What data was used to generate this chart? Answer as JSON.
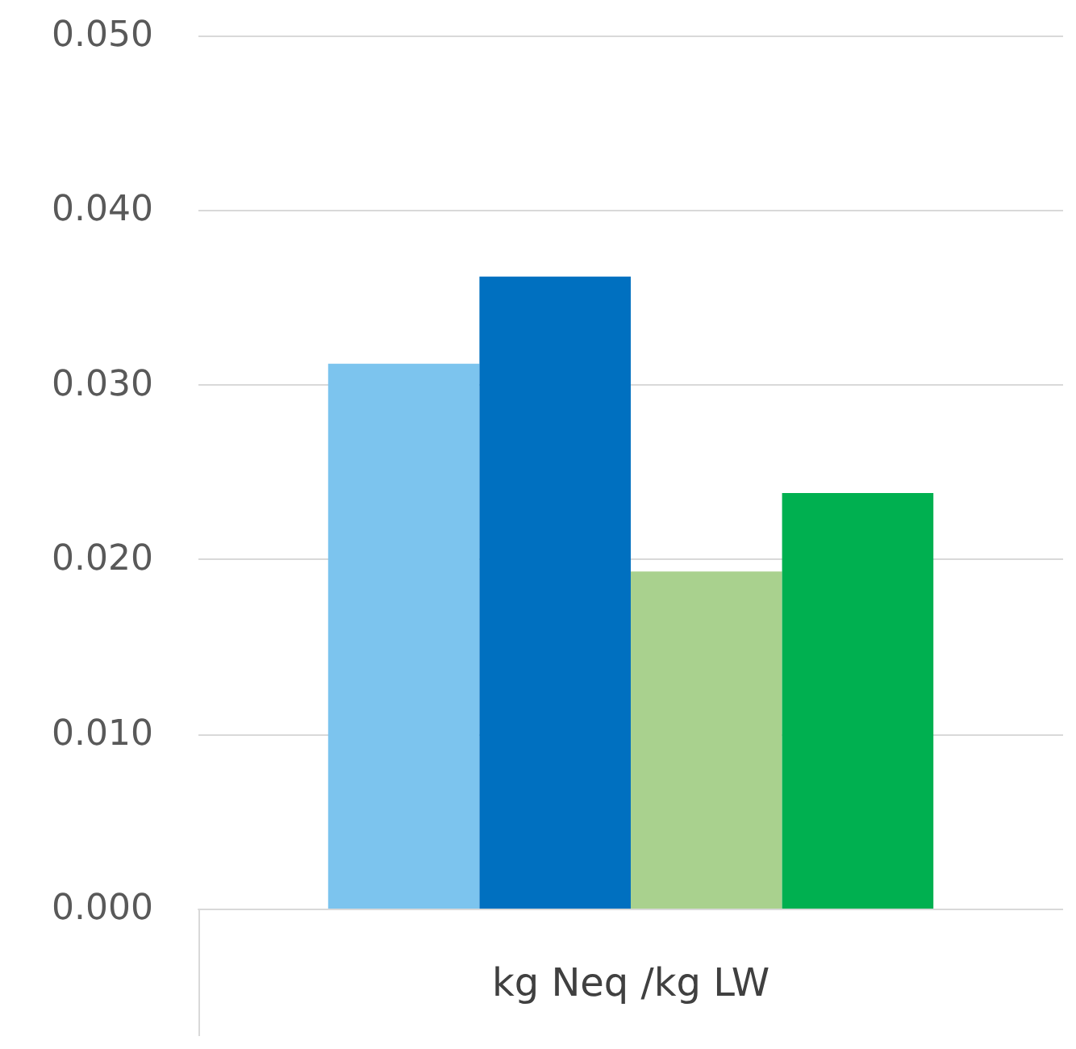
{
  "chart_data": {
    "type": "bar",
    "categories": [
      "kg Neq /kg LW"
    ],
    "series": [
      {
        "color": "#7cc4ee",
        "values": [
          0.0312
        ]
      },
      {
        "color": "#0070c0",
        "values": [
          0.0362
        ]
      },
      {
        "color": "#a9d18e",
        "values": [
          0.0193
        ]
      },
      {
        "color": "#00b050",
        "values": [
          0.0238
        ]
      }
    ],
    "ylim": [
      0,
      0.05
    ],
    "yticks": [
      {
        "value": 0,
        "label": "0.000"
      },
      {
        "value": 0.01,
        "label": "0.010"
      },
      {
        "value": 0.02,
        "label": "0.020"
      },
      {
        "value": 0.03,
        "label": "0.030"
      },
      {
        "value": 0.04,
        "label": "0.040"
      },
      {
        "value": 0.05,
        "label": "0.050"
      }
    ],
    "grid": "y"
  }
}
